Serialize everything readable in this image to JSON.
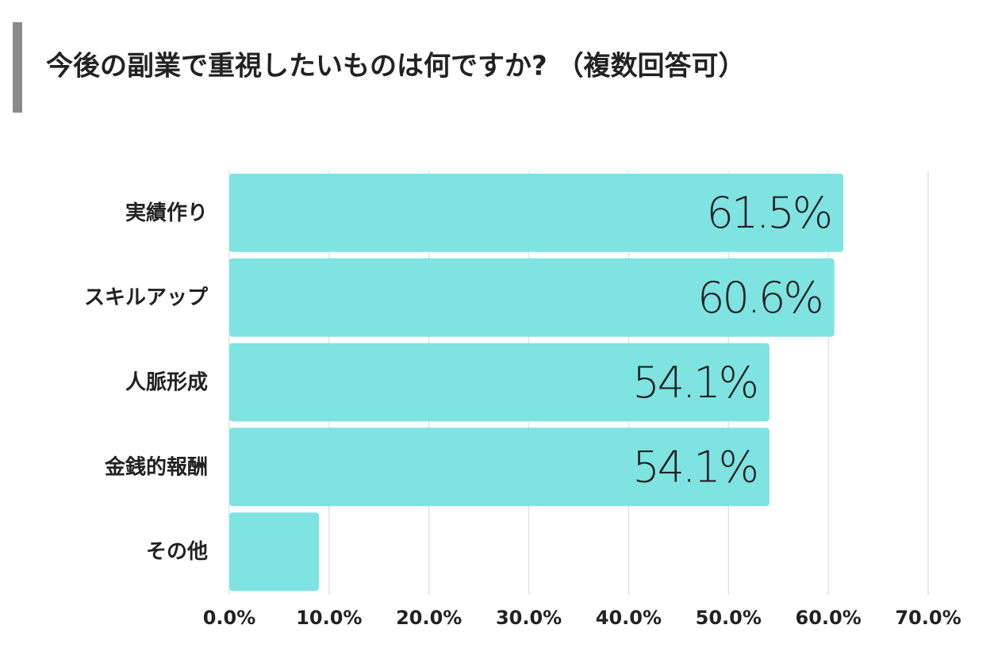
{
  "chart_data": {
    "type": "bar",
    "orientation": "horizontal",
    "title": "今後の副業で重視したいものは何ですか? （複数回答可）",
    "categories": [
      "実績作り",
      "スキルアップ",
      "人脈形成",
      "金銭的報酬",
      "その他"
    ],
    "values": [
      61.5,
      60.6,
      54.1,
      54.1,
      9.0
    ],
    "value_labels": [
      "61.5%",
      "60.6%",
      "54.1%",
      "54.1%",
      null
    ],
    "color": "#7fe3e2",
    "xlim": [
      0,
      70
    ],
    "xticks": [
      {
        "value": 0,
        "label": "0.0%"
      },
      {
        "value": 10,
        "label": "10.0%"
      },
      {
        "value": 20,
        "label": "20.0%"
      },
      {
        "value": 30,
        "label": "30.0%"
      },
      {
        "value": 40,
        "label": "40.0%"
      },
      {
        "value": 50,
        "label": "50.0%"
      },
      {
        "value": 60,
        "label": "60.0%"
      },
      {
        "value": 70,
        "label": "70.0%"
      }
    ],
    "grid": true
  }
}
